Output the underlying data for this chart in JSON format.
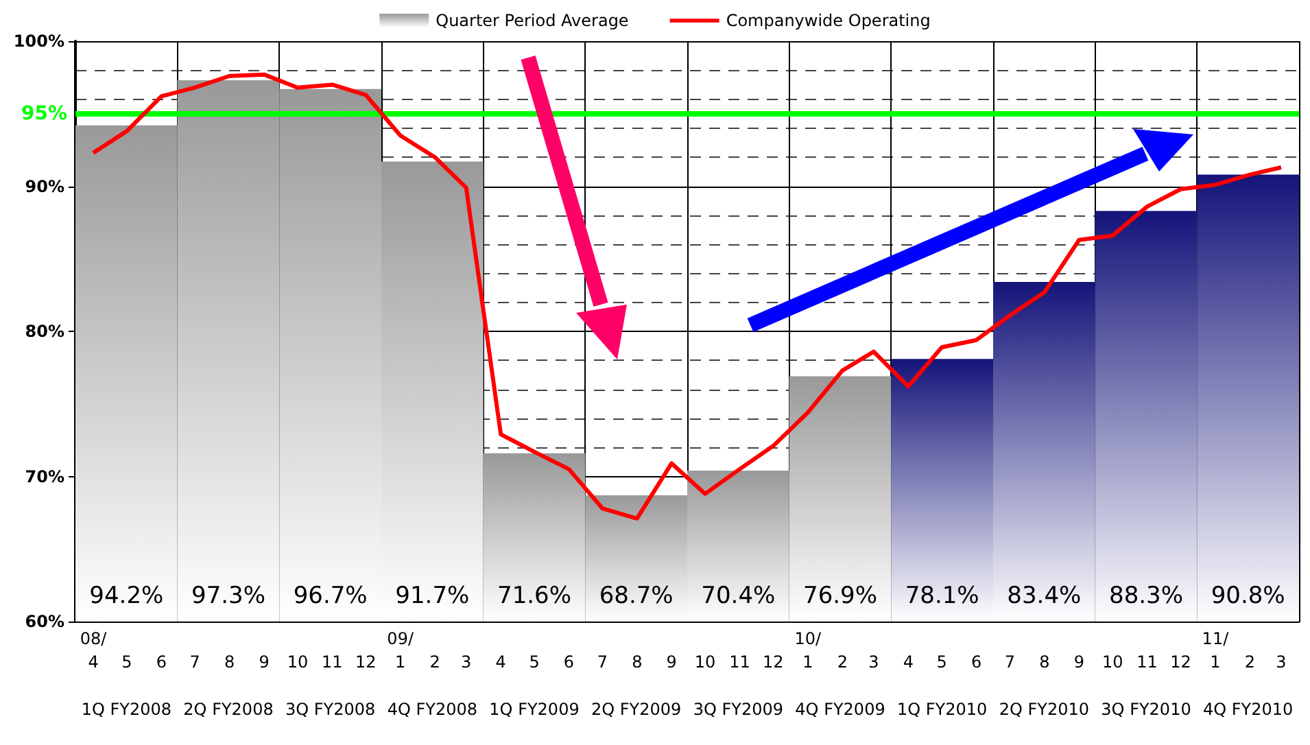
{
  "chart_data": {
    "type": "bar",
    "categories": [
      "1Q FY2008",
      "2Q FY2008",
      "3Q FY2008",
      "4Q FY2008",
      "1Q FY2009",
      "2Q FY2009",
      "3Q FY2009",
      "4Q FY2009",
      "1Q FY2010",
      "2Q FY2010",
      "3Q FY2010",
      "4Q FY2010"
    ],
    "series": [
      {
        "name": "Quarter Period Average",
        "values": [
          94.2,
          97.3,
          96.7,
          91.7,
          71.6,
          68.7,
          70.4,
          76.9,
          78.1,
          83.4,
          88.3,
          90.8
        ],
        "value_labels": [
          "94.2%",
          "97.3%",
          "96.7%",
          "91.7%",
          "71.6%",
          "68.7%",
          "70.4%",
          "76.9%",
          "78.1%",
          "83.4%",
          "88.3%",
          "90.8%"
        ],
        "colors": [
          "#999999",
          "#999999",
          "#999999",
          "#999999",
          "#999999",
          "#999999",
          "#999999",
          "#999999",
          "#14147a",
          "#14147a",
          "#14147a",
          "#14147a"
        ]
      },
      {
        "name": "Companywide Operating",
        "type": "line",
        "axis": "x2",
        "color": "#ff0000",
        "x": [
          "2008-04",
          "2008-05",
          "2008-06",
          "2008-07",
          "2008-08",
          "2008-09",
          "2008-10",
          "2008-11",
          "2008-12",
          "2009-01",
          "2009-02",
          "2009-03",
          "2009-04",
          "2009-05",
          "2009-06",
          "2009-07",
          "2009-08",
          "2009-09",
          "2009-10",
          "2009-11",
          "2009-12",
          "2010-01",
          "2010-02",
          "2010-03",
          "2010-04",
          "2010-05",
          "2010-06",
          "2010-07",
          "2010-08",
          "2010-09",
          "2010-10",
          "2010-11",
          "2010-12",
          "2011-01",
          "2011-02",
          "2011-03"
        ],
        "values": [
          92.3,
          93.8,
          96.2,
          96.8,
          97.6,
          97.7,
          96.8,
          97.0,
          96.3,
          93.5,
          92.0,
          89.9,
          72.9,
          71.7,
          70.5,
          67.8,
          67.1,
          70.9,
          68.8,
          70.5,
          72.1,
          74.4,
          77.3,
          78.6,
          76.2,
          78.9,
          79.4,
          81.1,
          82.7,
          86.3,
          86.6,
          88.6,
          89.8,
          90.1,
          90.8,
          91.3
        ]
      }
    ],
    "x2lim": [
      "2008-03-16",
      "2011-03-17"
    ],
    "x2ticks": [
      {
        "value": "2008-04",
        "label": "08/\n4"
      },
      {
        "value": "2008-05",
        "label": "5"
      },
      {
        "value": "2008-06",
        "label": "6"
      },
      {
        "value": "2008-07",
        "label": "7"
      },
      {
        "value": "2008-08",
        "label": "8"
      },
      {
        "value": "2008-09",
        "label": "9"
      },
      {
        "value": "2008-10",
        "label": "10"
      },
      {
        "value": "2008-11",
        "label": "11"
      },
      {
        "value": "2008-12",
        "label": "12"
      },
      {
        "value": "2009-01",
        "label": "09/\n1"
      },
      {
        "value": "2009-02",
        "label": "2"
      },
      {
        "value": "2009-03",
        "label": "3"
      },
      {
        "value": "2009-04",
        "label": "4"
      },
      {
        "value": "2009-05",
        "label": "5"
      },
      {
        "value": "2009-06",
        "label": "6"
      },
      {
        "value": "2009-07",
        "label": "7"
      },
      {
        "value": "2009-08",
        "label": "8"
      },
      {
        "value": "2009-09",
        "label": "9"
      },
      {
        "value": "2009-10",
        "label": "10"
      },
      {
        "value": "2009-11",
        "label": "11"
      },
      {
        "value": "2009-12",
        "label": "12"
      },
      {
        "value": "2010-01",
        "label": "10/\n1"
      },
      {
        "value": "2010-02",
        "label": "2"
      },
      {
        "value": "2010-03",
        "label": "3"
      },
      {
        "value": "2010-04",
        "label": "4"
      },
      {
        "value": "2010-05",
        "label": "5"
      },
      {
        "value": "2010-06",
        "label": "6"
      },
      {
        "value": "2010-07",
        "label": "7"
      },
      {
        "value": "2010-08",
        "label": "8"
      },
      {
        "value": "2010-09",
        "label": "9"
      },
      {
        "value": "2010-10",
        "label": "10"
      },
      {
        "value": "2010-11",
        "label": "11"
      },
      {
        "value": "2010-12",
        "label": "12"
      },
      {
        "value": "2011-01",
        "label": "11/\n1"
      },
      {
        "value": "2011-02",
        "label": "2"
      },
      {
        "value": "2011-03",
        "label": "3"
      }
    ],
    "ylim": [
      60,
      100
    ],
    "yticks": [
      {
        "value": 60,
        "label": "60%"
      },
      {
        "value": 70,
        "label": "70%"
      },
      {
        "value": 80,
        "label": "80%"
      },
      {
        "value": 90,
        "label": "90%"
      },
      {
        "value": 100,
        "label": "100%"
      }
    ],
    "ref_lines": [
      {
        "axis": "y",
        "value": 95,
        "label": "95%",
        "color": "#00ff00"
      }
    ],
    "grid": true,
    "legend": "top",
    "marker": "none",
    "line_style": "solid"
  }
}
